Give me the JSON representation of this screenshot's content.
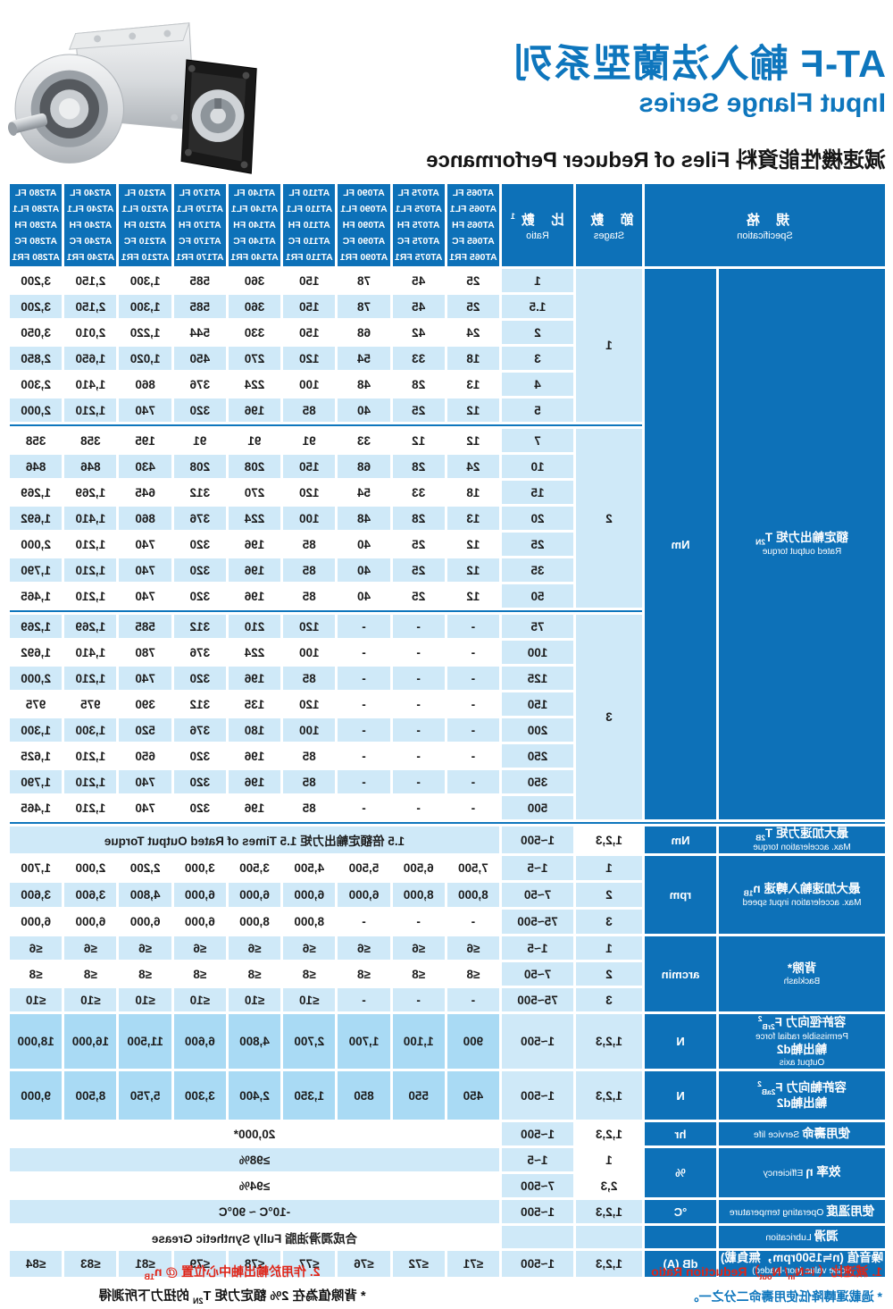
{
  "title": {
    "zh": "AT-F 輸入法蘭型系列",
    "en": "Input Flange Series",
    "sub_zh": "減速機性能資料",
    "sub_en": "Files of Reducer Performance"
  },
  "header": {
    "spec_zh": "規 格",
    "spec_en": "Specification",
    "stages_zh": "節 數",
    "stages_en": "Stages",
    "ratio_zh": "比 數",
    "ratio_sup": "1",
    "ratio_en": "Ratio"
  },
  "models": [
    "AT065",
    "AT075",
    "AT090",
    "AT110",
    "AT140",
    "AT170",
    "AT210",
    "AT240",
    "AT280"
  ],
  "suffixes": [
    "FL",
    "FL1",
    "FH",
    "FC",
    "FR1"
  ],
  "colors": {
    "dark_blue": "#0d71b8",
    "light_blue": "#cfe9f8",
    "mid_blue": "#a9daf4",
    "title_blue": "#0e76bd",
    "red": "#e02417"
  },
  "rated_torque": {
    "zh": "額定輸出力矩",
    "sym": "T",
    "sub": "2N",
    "en": "Rated output torque",
    "unit": "Nm",
    "sections": [
      {
        "stage": "1",
        "rows": [
          {
            "ratio": "1",
            "values": [
              "25",
              "45",
              "78",
              "150",
              "360",
              "585",
              "1,300",
              "2,150",
              "3,200"
            ]
          },
          {
            "ratio": "1.5",
            "values": [
              "25",
              "45",
              "78",
              "150",
              "360",
              "585",
              "1,300",
              "2,150",
              "3,200"
            ]
          },
          {
            "ratio": "2",
            "values": [
              "24",
              "42",
              "68",
              "150",
              "330",
              "544",
              "1,220",
              "2,010",
              "3,050"
            ]
          },
          {
            "ratio": "3",
            "values": [
              "18",
              "33",
              "54",
              "120",
              "270",
              "450",
              "1,020",
              "1,650",
              "2,850"
            ]
          },
          {
            "ratio": "4",
            "values": [
              "13",
              "28",
              "48",
              "100",
              "224",
              "376",
              "860",
              "1,410",
              "2,300"
            ]
          },
          {
            "ratio": "5",
            "values": [
              "12",
              "25",
              "40",
              "85",
              "196",
              "320",
              "740",
              "1,210",
              "2,000"
            ]
          }
        ]
      },
      {
        "stage": "2",
        "rows": [
          {
            "ratio": "7",
            "values": [
              "12",
              "12",
              "33",
              "91",
              "91",
              "91",
              "195",
              "358",
              "358"
            ]
          },
          {
            "ratio": "10",
            "values": [
              "24",
              "28",
              "68",
              "150",
              "208",
              "208",
              "430",
              "846",
              "846"
            ]
          },
          {
            "ratio": "15",
            "values": [
              "18",
              "33",
              "54",
              "120",
              "270",
              "312",
              "645",
              "1,269",
              "1,269"
            ]
          },
          {
            "ratio": "20",
            "values": [
              "13",
              "28",
              "48",
              "100",
              "224",
              "376",
              "860",
              "1,410",
              "1,692"
            ]
          },
          {
            "ratio": "25",
            "values": [
              "12",
              "25",
              "40",
              "85",
              "196",
              "320",
              "740",
              "1,210",
              "2,000"
            ]
          },
          {
            "ratio": "35",
            "values": [
              "12",
              "25",
              "40",
              "85",
              "196",
              "320",
              "740",
              "1,210",
              "1,790"
            ]
          },
          {
            "ratio": "50",
            "values": [
              "12",
              "25",
              "40",
              "85",
              "196",
              "320",
              "740",
              "1,210",
              "1,465"
            ]
          }
        ]
      },
      {
        "stage": "3",
        "rows": [
          {
            "ratio": "75",
            "values": [
              "-",
              "-",
              "-",
              "120",
              "210",
              "312",
              "585",
              "1,269",
              "1,269"
            ]
          },
          {
            "ratio": "100",
            "values": [
              "-",
              "-",
              "-",
              "100",
              "224",
              "376",
              "780",
              "1,410",
              "1,692"
            ]
          },
          {
            "ratio": "125",
            "values": [
              "-",
              "-",
              "-",
              "85",
              "196",
              "320",
              "740",
              "1,210",
              "2,000"
            ]
          },
          {
            "ratio": "150",
            "values": [
              "-",
              "-",
              "-",
              "120",
              "135",
              "312",
              "390",
              "975",
              "975"
            ]
          },
          {
            "ratio": "200",
            "values": [
              "-",
              "-",
              "-",
              "100",
              "180",
              "376",
              "520",
              "1,300",
              "1,300"
            ]
          },
          {
            "ratio": "250",
            "values": [
              "-",
              "-",
              "-",
              "85",
              "196",
              "320",
              "650",
              "1,210",
              "1,625"
            ]
          },
          {
            "ratio": "350",
            "values": [
              "-",
              "-",
              "-",
              "85",
              "196",
              "320",
              "740",
              "1,210",
              "1,790"
            ]
          },
          {
            "ratio": "500",
            "values": [
              "-",
              "-",
              "-",
              "85",
              "196",
              "320",
              "740",
              "1,210",
              "1,465"
            ]
          }
        ]
      }
    ]
  },
  "accel_torque": {
    "zh": "最大加速力矩",
    "sym": "T",
    "sub": "2B",
    "en": "Max. acceleration torque",
    "unit": "Nm",
    "stage": "1,2,3",
    "ratio": "1~500",
    "span": "1.5 倍額定輸出力矩  1.5 Times of Rated Output Torque"
  },
  "accel_speed": {
    "zh": "最大加速輸入轉速",
    "sym": "n",
    "sub": "1B",
    "en": "Max. acceleration input speed",
    "unit": "rpm",
    "rows": [
      {
        "stage": "1",
        "ratio": "1~5",
        "values": [
          "7,500",
          "6,500",
          "5,500",
          "4,500",
          "3,500",
          "3,000",
          "2,200",
          "2,000",
          "1,700"
        ]
      },
      {
        "stage": "2",
        "ratio": "7~50",
        "values": [
          "8,000",
          "8,000",
          "6,000",
          "6,000",
          "6,000",
          "6,000",
          "4,800",
          "3,600",
          "3,600"
        ]
      },
      {
        "stage": "3",
        "ratio": "75~500",
        "values": [
          "-",
          "-",
          "-",
          "8,000",
          "8,000",
          "6,000",
          "6,000",
          "6,000",
          "6,000"
        ]
      }
    ]
  },
  "backlash": {
    "zh": "背隙*",
    "en": "Backlash",
    "unit": "arcmin",
    "rows": [
      {
        "stage": "1",
        "ratio": "1~5",
        "values": [
          "≤6",
          "≤6",
          "≤6",
          "≤6",
          "≤6",
          "≤6",
          "≤6",
          "≤6",
          "≤6"
        ]
      },
      {
        "stage": "2",
        "ratio": "7~50",
        "values": [
          "≤8",
          "≤8",
          "≤8",
          "≤8",
          "≤8",
          "≤8",
          "≤8",
          "≤8",
          "≤8"
        ]
      },
      {
        "stage": "3",
        "ratio": "75~500",
        "values": [
          "-",
          "-",
          "-",
          "≤10",
          "≤10",
          "≤10",
          "≤10",
          "≤10",
          "≤10"
        ]
      }
    ]
  },
  "radial_force": {
    "zh": "容許徑向力",
    "sym": "F",
    "sub": "2rB",
    "sup": "2",
    "en": "Permissible radial force",
    "zh2": "輸出軸d2",
    "en2": "Output axis",
    "unit": "N",
    "stage": "1,2,3",
    "ratio": "1~500",
    "values": [
      "900",
      "1,100",
      "1,700",
      "2,700",
      "4,800",
      "6,600",
      "11,500",
      "16,000",
      "18,000"
    ]
  },
  "axial_force": {
    "zh": "容許軸向力",
    "sym": "F",
    "sub": "2aB",
    "sup": "2",
    "zh2": "輸出軸d2",
    "unit": "N",
    "stage": "1,2,3",
    "ratio": "1~500",
    "values": [
      "450",
      "550",
      "850",
      "1,350",
      "2,400",
      "3,300",
      "5,750",
      "8,500",
      "9,000"
    ]
  },
  "service_life": {
    "zh": "使用壽命",
    "en": "Service life",
    "unit": "hr",
    "stage": "1,2,3",
    "ratio": "1~500",
    "span": "20,000*"
  },
  "efficiency": {
    "zh": "效率 η",
    "en": "Efficiency",
    "unit": "%",
    "rows": [
      {
        "stage": "1",
        "ratio": "1~5",
        "span": "≥98%"
      },
      {
        "stage": "2,3",
        "ratio": "7~500",
        "span": "≥94%"
      }
    ]
  },
  "temperature": {
    "zh": "使用溫度",
    "en": "Operating temperature",
    "unit": "°C",
    "stage": "1,2,3",
    "ratio": "1~500",
    "span": "-10°C ~ 90°C"
  },
  "lubrication": {
    "zh": "潤滑",
    "en": "Lubrication",
    "span": "合成潤滑油脂  Fully Synthetic Grease"
  },
  "noise": {
    "zh": "噪音值 (n≒1500rpm，無負載)",
    "en": "Noise value (non-loaded)",
    "unit": "dB (A)",
    "stage": "1,2,3",
    "ratio": "1~500",
    "values": [
      "≤71",
      "≤72",
      "≤76",
      "≤77",
      "≤78",
      "≤79",
      "≤81",
      "≤83",
      "≤84"
    ]
  },
  "footnotes": {
    "f1": {
      "p1": "1. 減速比（ i=N",
      "s1": "in",
      "p2": "/ N",
      "s2": "out",
      "p3": "）Reduction Ratio"
    },
    "f1b": "* 過載運轉降低使用壽命二分之一。",
    "f2": {
      "p1": "2. 作用於輸出軸中心位置 @ n",
      "s1": "1B"
    },
    "f3": {
      "p1": "* 背隙值為在 2% 額定力矩 T",
      "s1": "2N",
      "p2": " 的扭力下所測得"
    }
  }
}
